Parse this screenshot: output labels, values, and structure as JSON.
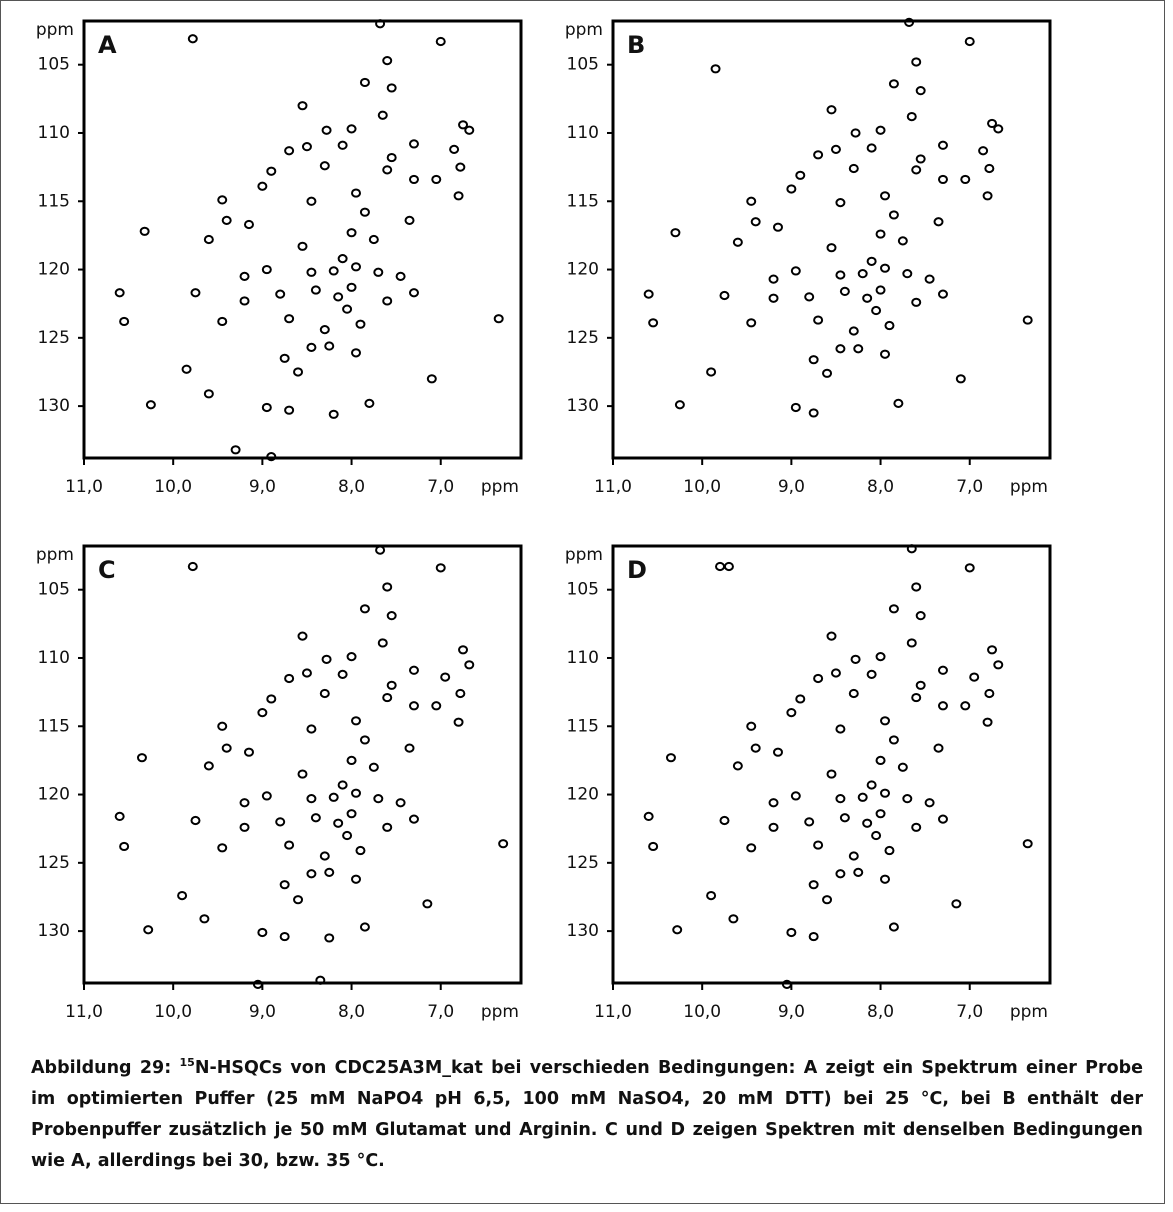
{
  "chart_data": [
    {
      "type": "scatter",
      "label": "A",
      "xlabel": "ppm",
      "ylabel": "ppm",
      "color": "#000000",
      "xlim": [
        11,
        6.1
      ],
      "ylim": [
        133.8,
        101.8
      ],
      "xticks": [
        {
          "value": 11,
          "label": "11,0"
        },
        {
          "value": 10,
          "label": "10,0"
        },
        {
          "value": 9,
          "label": "9,0"
        },
        {
          "value": 8,
          "label": "8,0"
        },
        {
          "value": 7,
          "label": "7,0"
        }
      ],
      "yticks": [
        105,
        110,
        115,
        120,
        125,
        130
      ],
      "x": [
        9.78,
        7.68,
        7.0,
        7.6,
        7.85,
        7.55,
        8.55,
        7.65,
        8.0,
        8.28,
        6.75,
        6.68,
        7.3,
        8.1,
        8.5,
        8.7,
        7.55,
        7.6,
        6.85,
        6.78,
        8.3,
        8.9,
        7.3,
        7.05,
        6.8,
        7.95,
        9.0,
        9.45,
        8.45,
        7.85,
        7.35,
        9.4,
        9.15,
        8.0,
        7.75,
        8.55,
        9.6,
        10.32,
        8.1,
        7.95,
        8.2,
        8.45,
        7.7,
        8.95,
        9.2,
        7.45,
        7.3,
        8.0,
        8.15,
        8.05,
        8.4,
        8.8,
        9.2,
        9.45,
        8.7,
        7.6,
        7.9,
        6.35,
        10.55,
        10.6,
        9.75,
        8.3,
        8.25,
        8.45,
        7.95,
        8.75,
        8.6,
        9.85,
        9.6,
        7.1,
        7.8,
        8.95,
        8.7,
        10.25,
        8.2,
        8.9,
        9.3
      ],
      "values": [
        103.1,
        102.0,
        103.3,
        104.7,
        106.3,
        106.7,
        108.0,
        108.7,
        109.7,
        109.8,
        109.4,
        109.8,
        110.8,
        110.9,
        111.0,
        111.3,
        111.8,
        112.7,
        111.2,
        112.5,
        112.4,
        112.8,
        113.4,
        113.4,
        114.6,
        114.4,
        113.9,
        114.9,
        115.0,
        115.8,
        116.4,
        116.4,
        116.7,
        117.3,
        117.8,
        118.3,
        117.8,
        117.2,
        119.2,
        119.8,
        120.1,
        120.2,
        120.2,
        120.0,
        120.5,
        120.5,
        121.7,
        121.3,
        122.0,
        122.9,
        121.5,
        121.8,
        122.3,
        123.8,
        123.6,
        122.3,
        124.0,
        123.6,
        123.8,
        121.7,
        121.7,
        124.4,
        125.6,
        125.7,
        126.1,
        126.5,
        127.5,
        127.3,
        129.1,
        128.0,
        129.8,
        130.1,
        130.3,
        129.9,
        130.6,
        133.7,
        133.2
      ]
    },
    {
      "type": "scatter",
      "label": "B",
      "xlabel": "ppm",
      "ylabel": "ppm",
      "color": "#000000",
      "xlim": [
        11,
        6.1
      ],
      "ylim": [
        133.8,
        101.8
      ],
      "xticks": [
        {
          "value": 11,
          "label": "11,0"
        },
        {
          "value": 10,
          "label": "10,0"
        },
        {
          "value": 9,
          "label": "9,0"
        },
        {
          "value": 8,
          "label": "8,0"
        },
        {
          "value": 7,
          "label": "7,0"
        }
      ],
      "yticks": [
        105,
        110,
        115,
        120,
        125,
        130
      ],
      "x": [
        9.85,
        7.68,
        7.0,
        7.6,
        7.85,
        7.55,
        8.55,
        7.65,
        8.0,
        8.28,
        6.75,
        6.68,
        7.3,
        8.1,
        8.5,
        8.7,
        7.55,
        7.6,
        6.85,
        6.78,
        8.3,
        8.9,
        7.3,
        7.05,
        6.8,
        7.95,
        9.0,
        9.45,
        8.45,
        7.85,
        7.35,
        9.4,
        9.15,
        8.0,
        7.75,
        8.55,
        9.6,
        10.3,
        8.1,
        7.95,
        8.2,
        8.45,
        7.7,
        8.95,
        9.2,
        7.45,
        7.3,
        8.0,
        8.15,
        8.05,
        8.4,
        8.8,
        9.2,
        9.45,
        8.7,
        7.6,
        7.9,
        6.35,
        10.55,
        10.6,
        9.75,
        8.3,
        8.25,
        8.45,
        7.95,
        8.75,
        8.6,
        9.9,
        7.1,
        7.8,
        8.95,
        8.75,
        10.25
      ],
      "values": [
        105.3,
        101.9,
        103.3,
        104.8,
        106.4,
        106.9,
        108.3,
        108.8,
        109.8,
        110.0,
        109.3,
        109.7,
        110.9,
        111.1,
        111.2,
        111.6,
        111.9,
        112.7,
        111.3,
        112.6,
        112.6,
        113.1,
        113.4,
        113.4,
        114.6,
        114.6,
        114.1,
        115.0,
        115.1,
        116.0,
        116.5,
        116.5,
        116.9,
        117.4,
        117.9,
        118.4,
        118.0,
        117.3,
        119.4,
        119.9,
        120.3,
        120.4,
        120.3,
        120.1,
        120.7,
        120.7,
        121.8,
        121.5,
        122.1,
        123.0,
        121.6,
        122.0,
        122.1,
        123.9,
        123.7,
        122.4,
        124.1,
        123.7,
        123.9,
        121.8,
        121.9,
        124.5,
        125.8,
        125.8,
        126.2,
        126.6,
        127.6,
        127.5,
        128.0,
        129.8,
        130.1,
        130.5,
        129.9
      ]
    },
    {
      "type": "scatter",
      "label": "C",
      "xlabel": "ppm",
      "ylabel": "ppm",
      "color": "#000000",
      "xlim": [
        11,
        6.1
      ],
      "ylim": [
        133.8,
        101.8
      ],
      "xticks": [
        {
          "value": 11,
          "label": "11,0"
        },
        {
          "value": 10,
          "label": "10,0"
        },
        {
          "value": 9,
          "label": "9,0"
        },
        {
          "value": 8,
          "label": "8,0"
        },
        {
          "value": 7,
          "label": "7,0"
        }
      ],
      "yticks": [
        105,
        110,
        115,
        120,
        125,
        130
      ],
      "x": [
        9.78,
        7.68,
        7.0,
        7.6,
        7.85,
        7.55,
        8.55,
        7.65,
        8.0,
        8.28,
        6.75,
        6.68,
        7.3,
        8.1,
        8.5,
        8.7,
        7.55,
        7.6,
        6.95,
        6.78,
        8.3,
        8.9,
        7.3,
        7.05,
        6.8,
        7.95,
        9.0,
        9.45,
        8.45,
        7.85,
        7.35,
        9.4,
        9.15,
        8.0,
        7.75,
        8.55,
        9.6,
        10.35,
        8.1,
        7.95,
        8.2,
        8.45,
        7.7,
        8.95,
        9.2,
        7.45,
        7.3,
        8.0,
        8.15,
        8.05,
        8.4,
        8.8,
        9.2,
        9.45,
        8.7,
        7.6,
        7.9,
        6.3,
        10.55,
        10.6,
        9.75,
        8.3,
        8.25,
        8.45,
        7.95,
        8.75,
        8.6,
        9.9,
        9.65,
        7.15,
        7.85,
        9.0,
        8.75,
        10.28,
        8.25,
        9.05,
        8.35
      ],
      "values": [
        103.3,
        102.1,
        103.4,
        104.8,
        106.4,
        106.9,
        108.4,
        108.9,
        109.9,
        110.1,
        109.4,
        110.5,
        110.9,
        111.2,
        111.1,
        111.5,
        112.0,
        112.9,
        111.4,
        112.6,
        112.6,
        113.0,
        113.5,
        113.5,
        114.7,
        114.6,
        114.0,
        115.0,
        115.2,
        116.0,
        116.6,
        116.6,
        116.9,
        117.5,
        118.0,
        118.5,
        117.9,
        117.3,
        119.3,
        119.9,
        120.2,
        120.3,
        120.3,
        120.1,
        120.6,
        120.6,
        121.8,
        121.4,
        122.1,
        123.0,
        121.7,
        122.0,
        122.4,
        123.9,
        123.7,
        122.4,
        124.1,
        123.6,
        123.8,
        121.6,
        121.9,
        124.5,
        125.7,
        125.8,
        126.2,
        126.6,
        127.7,
        127.4,
        129.1,
        128.0,
        129.7,
        130.1,
        130.4,
        129.9,
        130.5,
        133.9,
        133.6
      ]
    },
    {
      "type": "scatter",
      "label": "D",
      "xlabel": "ppm",
      "ylabel": "ppm",
      "color": "#000000",
      "xlim": [
        11,
        6.1
      ],
      "ylim": [
        133.8,
        101.8
      ],
      "xticks": [
        {
          "value": 11,
          "label": "11,0"
        },
        {
          "value": 10,
          "label": "10,0"
        },
        {
          "value": 9,
          "label": "9,0"
        },
        {
          "value": 8,
          "label": "8,0"
        },
        {
          "value": 7,
          "label": "7,0"
        }
      ],
      "yticks": [
        105,
        110,
        115,
        120,
        125,
        130
      ],
      "x": [
        9.8,
        9.7,
        7.65,
        7.0,
        7.6,
        7.85,
        7.55,
        8.55,
        7.65,
        8.0,
        8.28,
        6.75,
        6.68,
        7.3,
        8.1,
        8.5,
        8.7,
        7.55,
        7.6,
        6.95,
        6.78,
        8.3,
        8.9,
        7.3,
        7.05,
        6.8,
        7.95,
        9.0,
        9.45,
        8.45,
        7.85,
        7.35,
        9.4,
        9.15,
        8.0,
        7.75,
        8.55,
        9.6,
        10.35,
        8.1,
        7.95,
        8.2,
        8.45,
        7.7,
        8.95,
        9.2,
        7.45,
        7.3,
        8.0,
        8.15,
        8.05,
        8.4,
        8.8,
        9.2,
        9.45,
        8.7,
        7.6,
        7.9,
        6.35,
        10.55,
        10.6,
        9.75,
        8.3,
        8.25,
        8.45,
        7.95,
        8.75,
        8.6,
        9.9,
        9.65,
        7.15,
        7.85,
        9.0,
        8.75,
        10.28,
        9.05
      ],
      "values": [
        103.3,
        103.3,
        102.0,
        103.4,
        104.8,
        106.4,
        106.9,
        108.4,
        108.9,
        109.9,
        110.1,
        109.4,
        110.5,
        110.9,
        111.2,
        111.1,
        111.5,
        112.0,
        112.9,
        111.4,
        112.6,
        112.6,
        113.0,
        113.5,
        113.5,
        114.7,
        114.6,
        114.0,
        115.0,
        115.2,
        116.0,
        116.6,
        116.6,
        116.9,
        117.5,
        118.0,
        118.5,
        117.9,
        117.3,
        119.3,
        119.9,
        120.2,
        120.3,
        120.3,
        120.1,
        120.6,
        120.6,
        121.8,
        121.4,
        122.1,
        123.0,
        121.7,
        122.0,
        122.4,
        123.9,
        123.7,
        122.4,
        124.1,
        123.6,
        123.8,
        121.6,
        121.9,
        124.5,
        125.7,
        125.8,
        126.2,
        126.6,
        127.7,
        127.4,
        129.1,
        128.0,
        129.7,
        130.1,
        130.4,
        129.9,
        133.9
      ]
    }
  ],
  "caption": {
    "prefix": "Abbildung 29:",
    "sup": "15",
    "text": "N-HSQCs von CDC25A3M_kat bei verschieden Bedingungen: A zeigt ein Spektrum einer Probe im optimierten Puffer (25 mM NaPO4 pH 6,5, 100 mM NaSO4, 20 mM DTT) bei 25 °C, bei B enthält der Probenpuffer zusätzlich je 50 mM Glutamat und Arginin. C und D zeigen Spektren mit denselben Bedingungen wie A, allerdings bei 30, bzw. 35 °C."
  }
}
